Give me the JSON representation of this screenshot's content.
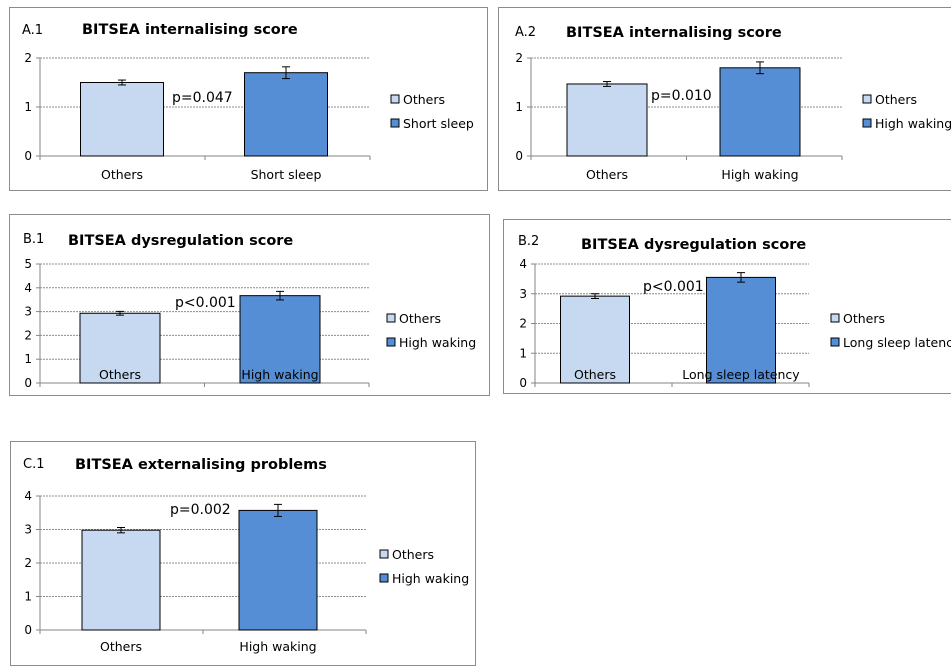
{
  "colors": {
    "others": "#c6d9f1",
    "highlight": "#558ed5",
    "bar_stroke": "#000000",
    "grid": "#8c8c8c",
    "axis": "#868686"
  },
  "chart_data": [
    {
      "id": "A.1",
      "type": "bar",
      "title": "BITSEA internalising score",
      "categories": [
        "Others",
        "Short sleep"
      ],
      "values": [
        1.5,
        1.7
      ],
      "errors": [
        0.05,
        0.12
      ],
      "ylim": [
        0,
        2
      ],
      "yticks": [
        "0",
        "1",
        "2"
      ],
      "annotation": "p=0.047",
      "legend": [
        "Others",
        "Short sleep"
      ],
      "legend_position": "right",
      "grid": true
    },
    {
      "id": "A.2",
      "type": "bar",
      "title": "BITSEA internalising score",
      "categories": [
        "Others",
        "High waking"
      ],
      "values": [
        1.47,
        1.8
      ],
      "errors": [
        0.05,
        0.12
      ],
      "ylim": [
        0,
        2
      ],
      "yticks": [
        "0",
        "1",
        "2"
      ],
      "annotation": "p=0.010",
      "legend": [
        "Others",
        "High waking"
      ],
      "legend_position": "right",
      "grid": true
    },
    {
      "id": "B.1",
      "type": "bar",
      "title": "BITSEA dysregulation score",
      "categories": [
        "Others",
        "High waking"
      ],
      "values": [
        2.93,
        3.67
      ],
      "errors": [
        0.08,
        0.18
      ],
      "ylim": [
        0,
        5
      ],
      "yticks": [
        "0",
        "1",
        "2",
        "3",
        "4",
        "5"
      ],
      "annotation": "p<0.001",
      "legend": [
        "Others",
        "High waking"
      ],
      "legend_position": "right",
      "grid": true
    },
    {
      "id": "B.2",
      "type": "bar",
      "title": "BITSEA dysregulation score",
      "categories": [
        "Others",
        "Long sleep latency"
      ],
      "values": [
        2.92,
        3.55
      ],
      "errors": [
        0.08,
        0.16
      ],
      "ylim": [
        0,
        4
      ],
      "yticks": [
        "0",
        "1",
        "2",
        "3",
        "4"
      ],
      "annotation": "p<0.001",
      "legend": [
        "Others",
        "Long sleep latency"
      ],
      "legend_position": "right",
      "grid": true
    },
    {
      "id": "C.1",
      "type": "bar",
      "title": "BITSEA externalising problems",
      "categories": [
        "Others",
        "High waking"
      ],
      "values": [
        2.98,
        3.57
      ],
      "errors": [
        0.08,
        0.18
      ],
      "ylim": [
        0,
        4
      ],
      "yticks": [
        "0",
        "1",
        "2",
        "3",
        "4"
      ],
      "annotation": "p=0.002",
      "legend": [
        "Others",
        "High waking"
      ],
      "legend_position": "right",
      "grid": true
    }
  ]
}
